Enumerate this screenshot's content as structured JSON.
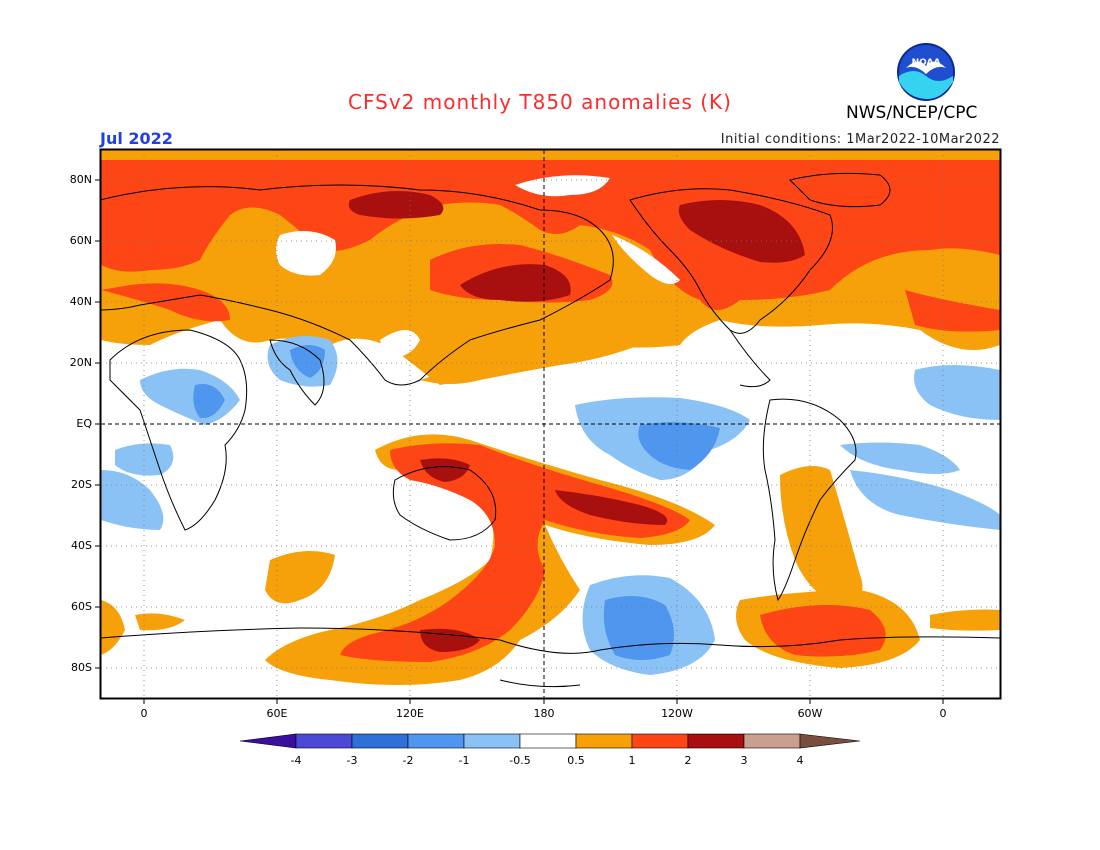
{
  "title": "CFSv2 monthly T850 anomalies (K)",
  "month_label": "Jul 2022",
  "initial_conditions": "Initial conditions: 1Mar2022-10Mar2022",
  "organization": "NWS/NCEP/CPC",
  "logo_text": "NOAA",
  "latitude_labels": [
    "80N",
    "60N",
    "40N",
    "20N",
    "EQ",
    "20S",
    "40S",
    "60S",
    "80S"
  ],
  "longitude_labels": [
    "0",
    "60E",
    "120E",
    "180",
    "120W",
    "60W",
    "0"
  ],
  "colorbar": {
    "tick_labels": [
      "-4",
      "-3",
      "-2",
      "-1",
      "-0.5",
      "0.5",
      "1",
      "2",
      "3",
      "4"
    ],
    "colors": [
      "#3a0f9e",
      "#4a4ad6",
      "#2f6fd8",
      "#4f96ee",
      "#8bc2f5",
      "#ffffff",
      "#f7a10a",
      "#fd4516",
      "#a8100f",
      "#c9a090",
      "#7a4e3d"
    ]
  },
  "colors": {
    "title": "#ff2a2a",
    "month": "#2040e0",
    "land_outline": "#000000",
    "plot_frame": "#000000"
  }
}
